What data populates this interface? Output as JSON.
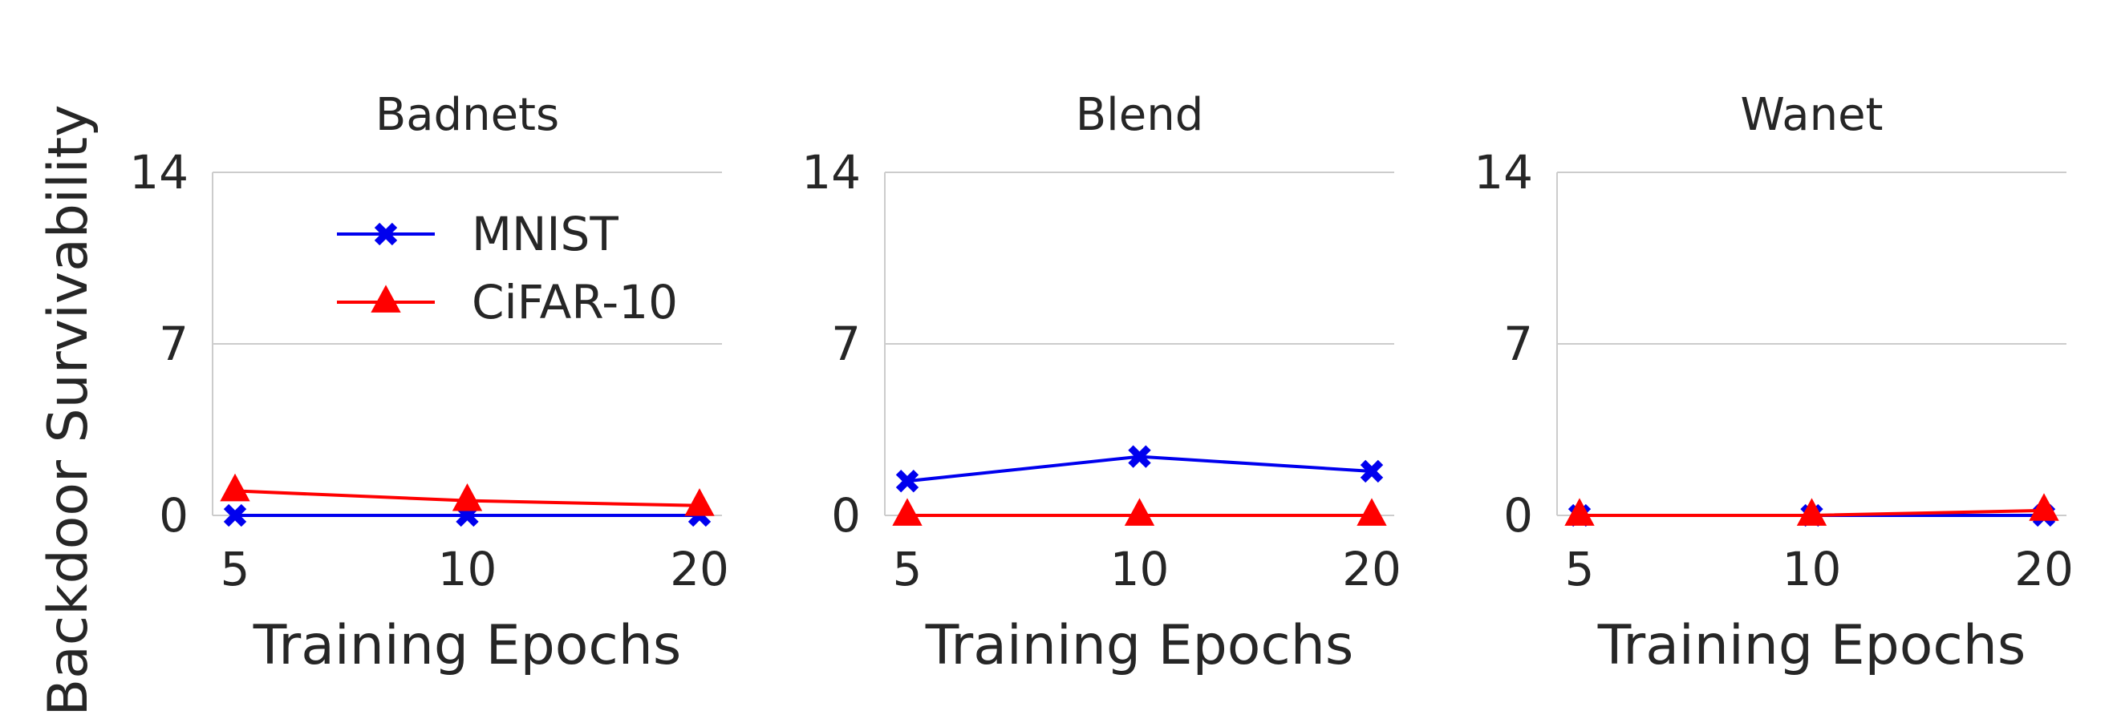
{
  "ylabel": "Backdoor Survivability",
  "chart_data": [
    {
      "type": "line",
      "title": "Badnets",
      "xlabel": "Training Epochs",
      "ylabel": "Backdoor Survivability",
      "x": [
        "5",
        "10",
        "20"
      ],
      "ylim": [
        0,
        14
      ],
      "yticks": [
        0,
        7,
        14
      ],
      "grid": true,
      "legend": "upper-center",
      "series": [
        {
          "name": "MNIST",
          "color": "#0000ee",
          "marker": "x-icon",
          "values": [
            0.0,
            0.0,
            0.0
          ]
        },
        {
          "name": "CiFAR-10",
          "color": "#ff0000",
          "marker": "triangle-icon",
          "values": [
            1.0,
            0.6,
            0.4
          ]
        }
      ]
    },
    {
      "type": "line",
      "title": "Blend",
      "xlabel": "Training Epochs",
      "x": [
        "5",
        "10",
        "20"
      ],
      "ylim": [
        0,
        14
      ],
      "yticks": [
        0,
        7,
        14
      ],
      "grid": true,
      "series": [
        {
          "name": "MNIST",
          "color": "#0000ee",
          "marker": "x-icon",
          "values": [
            1.4,
            2.4,
            1.8
          ]
        },
        {
          "name": "CiFAR-10",
          "color": "#ff0000",
          "marker": "triangle-icon",
          "values": [
            0.0,
            0.0,
            0.0
          ]
        }
      ]
    },
    {
      "type": "line",
      "title": "Wanet",
      "xlabel": "Training Epochs",
      "x": [
        "5",
        "10",
        "20"
      ],
      "ylim": [
        0,
        14
      ],
      "yticks": [
        0,
        7,
        14
      ],
      "grid": true,
      "series": [
        {
          "name": "MNIST",
          "color": "#0000ee",
          "marker": "x-icon",
          "values": [
            0.0,
            0.0,
            0.0
          ]
        },
        {
          "name": "CiFAR-10",
          "color": "#ff0000",
          "marker": "triangle-icon",
          "values": [
            0.0,
            0.0,
            0.2
          ]
        }
      ]
    }
  ]
}
